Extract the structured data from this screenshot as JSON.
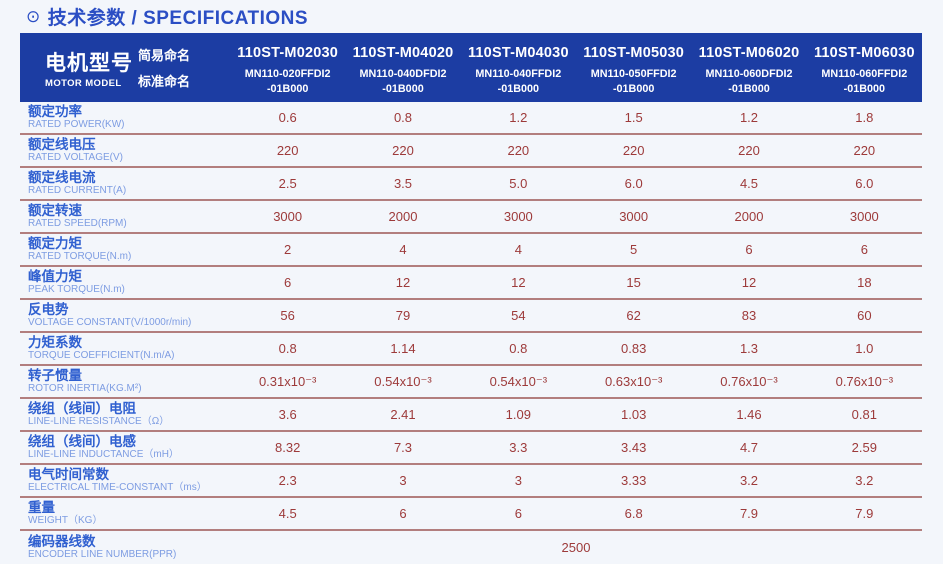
{
  "page": {
    "bullet_icon": "⊙",
    "title": "技术参数 / SPECIFICATIONS"
  },
  "colors": {
    "header_bg": "#1c3da3",
    "title_blue": "#2b4ec4",
    "label_blue": "#3060d0",
    "label_light_blue": "#7d9ce2",
    "value_maroon": "#9d3a3a",
    "separator": "#b27e7e"
  },
  "table": {
    "header": {
      "model_label_zh": "电机型号",
      "model_label_en": "MOTOR MODEL",
      "simple_name_label": "简易命名",
      "standard_name_label": "标准命名",
      "models": [
        {
          "simple": "110ST-M02030",
          "standard_line1": "MN110-020FFDI2",
          "standard_line2": "-01B000"
        },
        {
          "simple": "110ST-M04020",
          "standard_line1": "MN110-040DFDI2",
          "standard_line2": "-01B000"
        },
        {
          "simple": "110ST-M04030",
          "standard_line1": "MN110-040FFDI2",
          "standard_line2": "-01B000"
        },
        {
          "simple": "110ST-M05030",
          "standard_line1": "MN110-050FFDI2",
          "standard_line2": "-01B000"
        },
        {
          "simple": "110ST-M06020",
          "standard_line1": "MN110-060DFDI2",
          "standard_line2": "-01B000"
        },
        {
          "simple": "110ST-M06030",
          "standard_line1": "MN110-060FFDI2",
          "standard_line2": "-01B000"
        }
      ]
    },
    "rows": [
      {
        "zh": "额定功率",
        "en": "RATED POWER(KW)",
        "values": [
          "0.6",
          "0.8",
          "1.2",
          "1.5",
          "1.2",
          "1.8"
        ]
      },
      {
        "zh": "额定线电压",
        "en": "RATED VOLTAGE(V)",
        "values": [
          "220",
          "220",
          "220",
          "220",
          "220",
          "220"
        ]
      },
      {
        "zh": "额定线电流",
        "en": "RATED CURRENT(A)",
        "values": [
          "2.5",
          "3.5",
          "5.0",
          "6.0",
          "4.5",
          "6.0"
        ]
      },
      {
        "zh": "额定转速",
        "en": "RATED SPEED(RPM)",
        "values": [
          "3000",
          "2000",
          "3000",
          "3000",
          "2000",
          "3000"
        ]
      },
      {
        "zh": "额定力矩",
        "en": "RATED TORQUE(N.m)",
        "values": [
          "2",
          "4",
          "4",
          "5",
          "6",
          "6"
        ]
      },
      {
        "zh": "峰值力矩",
        "en": "PEAK TORQUE(N.m)",
        "values": [
          "6",
          "12",
          "12",
          "15",
          "12",
          "18"
        ]
      },
      {
        "zh": "反电势",
        "en": "VOLTAGE CONSTANT(V/1000r/min)",
        "values": [
          "56",
          "79",
          "54",
          "62",
          "83",
          "60"
        ]
      },
      {
        "zh": "力矩系数",
        "en": "TORQUE COEFFICIENT(N.m/A)",
        "values": [
          "0.8",
          "1.14",
          "0.8",
          "0.83",
          "1.3",
          "1.0"
        ]
      },
      {
        "zh": "转子惯量",
        "en": "ROTOR INERTIA(KG.M²)",
        "values": [
          "0.31x10⁻³",
          "0.54x10⁻³",
          "0.54x10⁻³",
          "0.63x10⁻³",
          "0.76x10⁻³",
          "0.76x10⁻³"
        ]
      },
      {
        "zh": "绕组（线间）电阻",
        "en": "LINE-LINE RESISTANCE（Ω）",
        "values": [
          "3.6",
          "2.41",
          "1.09",
          "1.03",
          "1.46",
          "0.81"
        ]
      },
      {
        "zh": "绕组（线间）电感",
        "en": "LINE-LINE INDUCTANCE（mH）",
        "values": [
          "8.32",
          "7.3",
          "3.3",
          "3.43",
          "4.7",
          "2.59"
        ]
      },
      {
        "zh": "电气时间常数",
        "en": "ELECTRICAL TIME-CONSTANT（ms）",
        "values": [
          "2.3",
          "3",
          "3",
          "3.33",
          "3.2",
          "3.2"
        ]
      },
      {
        "zh": "重量",
        "en": "WEIGHT（KG）",
        "values": [
          "4.5",
          "6",
          "6",
          "6.8",
          "7.9",
          "7.9"
        ]
      }
    ],
    "encoder_row": {
      "zh": "编码器线数",
      "en": "ENCODER LINE NUMBER(PPR)",
      "value": "2500"
    }
  }
}
